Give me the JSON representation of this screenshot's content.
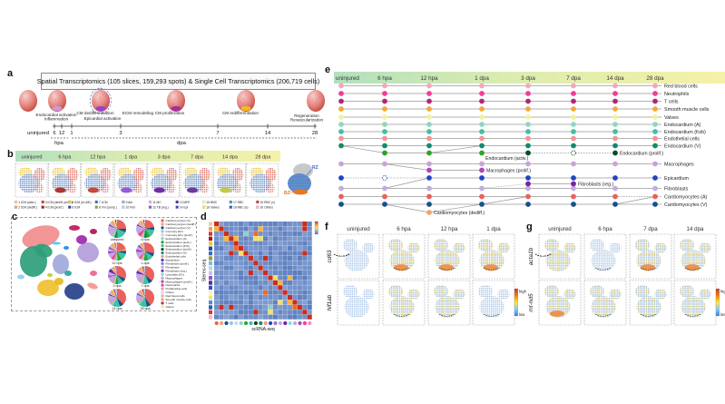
{
  "panel_a": {
    "letter": "a",
    "title": "Spatial Transcriptomics  (105 slices, 159,293 spots)  &  Single Cell Transcriptomics (206,719 cells)",
    "stages": [
      {
        "lines": [
          "Endocardial activation",
          "Inflammation"
        ]
      },
      {
        "lines": [
          "CM dedifferentiation"
        ]
      },
      {
        "lines": [
          "Epicardial activation"
        ]
      },
      {
        "lines": [
          "ECM remodeling"
        ]
      },
      {
        "lines": [
          "CM proliferation"
        ]
      },
      {
        "lines": [
          "CM redifferentiation"
        ]
      },
      {
        "lines": [
          "Regeneration",
          "Revascularization"
        ]
      }
    ],
    "axis": {
      "start_label": "uninjured",
      "tick_labels": [
        "6",
        "12",
        "1",
        "3",
        "7",
        "14",
        "28"
      ],
      "unit_hpa": "hpa",
      "unit_dpa": "dpa"
    }
  },
  "panel_b": {
    "letter": "b",
    "timepoints": [
      "uninjured",
      "6 hpa",
      "12 hpa",
      "1 dpa",
      "3 dpa",
      "7 dpa",
      "14 dpa",
      "28 dpa"
    ],
    "tiles": [
      {
        "label": "uninjured",
        "accent": null
      },
      {
        "label": "6 hpa",
        "accent": "#A82620"
      },
      {
        "label": "12 hpa",
        "accent": "#C23B2E"
      },
      {
        "label": "1 dpa",
        "accent": "#8E4FD0"
      },
      {
        "label": "3 dpa",
        "accent": "#6A1B9A"
      },
      {
        "label": "7 dpa",
        "accent": "#5E2B97"
      },
      {
        "label": "14 dpa",
        "accent": "#C9C832"
      },
      {
        "label": "28 dpa",
        "accent": null
      }
    ],
    "inset": {
      "rz_label": "RZ",
      "bz_label": "BZ",
      "rz_color": "#3A6BC9",
      "bz_color": "#E87722"
    },
    "legend": [
      {
        "label": "1 tCM (activ.)",
        "color": "#F7C9A3"
      },
      {
        "label": "2 tCM (dediff.)",
        "color": "#EFA06B"
      },
      {
        "label": "3 tCM (dediff.-prolif.)",
        "color": "#D63B2F"
      },
      {
        "label": "4 tCM (prolif.)",
        "color": "#9E1C15"
      },
      {
        "label": "5 tCM (re-diff.)",
        "color": "#F2C832"
      },
      {
        "label": "6 tCM",
        "color": "#1F4E9C"
      },
      {
        "label": "7 cCM",
        "color": "#3A6BC9"
      },
      {
        "label": "8 Vm (comp.)",
        "color": "#94A22B"
      },
      {
        "label": "9 Am",
        "color": "#85B6DB"
      },
      {
        "label": "10 tVm",
        "color": "#B8D4EC"
      },
      {
        "label": "11 MC",
        "color": "#CDBCEA"
      },
      {
        "label": "12 TB (reg.)",
        "color": "#8A5BC8"
      },
      {
        "label": "13 MFE",
        "color": "#5A2D8F"
      },
      {
        "label": "14 Epi",
        "color": "#2B51C8"
      },
      {
        "label": "15 BMC",
        "color": "#F6F2B8"
      },
      {
        "label": "16 Valves",
        "color": "#F3E663"
      },
      {
        "label": "17 RBC",
        "color": "#4A8FD9"
      },
      {
        "label": "18 RBC (a)",
        "color": "#2860AE"
      },
      {
        "label": "19 RBC (v)",
        "color": "#D63B2F"
      },
      {
        "label": "20 Others",
        "color": "#F2B8C6"
      }
    ]
  },
  "panel_c": {
    "letter": "c",
    "pie_labels": [
      "uninjured",
      "6 hpa",
      "12 hpa",
      "1 dpa",
      "3 dpa",
      "7 dpa",
      "14 dpa",
      "28 dpa"
    ],
    "pies": [
      [
        [
          "#E9615A",
          25
        ],
        [
          "#174F8F",
          6
        ],
        [
          "#3FC1A5",
          18
        ],
        [
          "#13896E",
          6
        ],
        [
          "#92D6BE",
          5
        ],
        [
          "#F29691",
          3
        ],
        [
          "#9BC4E8",
          3
        ],
        [
          "#C9A2DD",
          8
        ],
        [
          "#BFAEE3",
          7
        ],
        [
          "#2244C4",
          2
        ],
        [
          "#F2A8BC",
          6
        ],
        [
          "#F2A93B",
          4
        ],
        [
          "#F5F0A0",
          3
        ],
        [
          "#B02878",
          2
        ],
        [
          "#D9D9D9",
          2
        ]
      ],
      [
        [
          "#E9615A",
          22
        ],
        [
          "#174F8F",
          5
        ],
        [
          "#3FC1A5",
          14
        ],
        [
          "#27A52B",
          6
        ],
        [
          "#13896E",
          5
        ],
        [
          "#92D6BE",
          4
        ],
        [
          "#F29691",
          3
        ],
        [
          "#F03E98",
          6
        ],
        [
          "#C9A2DD",
          10
        ],
        [
          "#BFAEE3",
          6
        ],
        [
          "#2244C4",
          2
        ],
        [
          "#F2A8BC",
          8
        ],
        [
          "#F2A93B",
          3
        ],
        [
          "#F5F0A0",
          2
        ],
        [
          "#B02878",
          2
        ],
        [
          "#D9D9D9",
          2
        ]
      ],
      [
        [
          "#E9615A",
          20
        ],
        [
          "#F2A469",
          4
        ],
        [
          "#174F8F",
          5
        ],
        [
          "#3FC1A5",
          13
        ],
        [
          "#27A52B",
          7
        ],
        [
          "#92D6BE",
          4
        ],
        [
          "#F29691",
          3
        ],
        [
          "#F03E98",
          5
        ],
        [
          "#C9A2DD",
          10
        ],
        [
          "#AB47BC",
          4
        ],
        [
          "#BFAEE3",
          6
        ],
        [
          "#2244C4",
          2
        ],
        [
          "#F2A8BC",
          7
        ],
        [
          "#F2A93B",
          3
        ],
        [
          "#F5F0A0",
          2
        ],
        [
          "#B02878",
          2
        ],
        [
          "#D9D9D9",
          3
        ]
      ],
      [
        [
          "#E9615A",
          28
        ],
        [
          "#174F8F",
          6
        ],
        [
          "#3FC1A5",
          11
        ],
        [
          "#27A52B",
          7
        ],
        [
          "#92D6BE",
          4
        ],
        [
          "#F29691",
          3
        ],
        [
          "#F03E98",
          3
        ],
        [
          "#C9A2DD",
          12
        ],
        [
          "#AB47BC",
          5
        ],
        [
          "#BFAEE3",
          6
        ],
        [
          "#2244C4",
          2
        ],
        [
          "#F2A8BC",
          5
        ],
        [
          "#F2A93B",
          3
        ],
        [
          "#F5F0A0",
          2
        ],
        [
          "#B02878",
          2
        ],
        [
          "#D9D9D9",
          1
        ]
      ],
      [
        [
          "#E9615A",
          32
        ],
        [
          "#174F8F",
          6
        ],
        [
          "#3FC1A5",
          10
        ],
        [
          "#27A52B",
          5
        ],
        [
          "#92D6BE",
          4
        ],
        [
          "#F29691",
          3
        ],
        [
          "#C9A2DD",
          11
        ],
        [
          "#AB47BC",
          3
        ],
        [
          "#BFAEE3",
          7
        ],
        [
          "#7B1FA2",
          4
        ],
        [
          "#2244C4",
          2
        ],
        [
          "#F2A8BC",
          5
        ],
        [
          "#F2A93B",
          3
        ],
        [
          "#F5F0A0",
          2
        ],
        [
          "#B02878",
          2
        ],
        [
          "#D9D9D9",
          1
        ]
      ],
      [
        [
          "#E9615A",
          36
        ],
        [
          "#174F8F",
          7
        ],
        [
          "#3FC1A5",
          11
        ],
        [
          "#92D6BE",
          4
        ],
        [
          "#F29691",
          3
        ],
        [
          "#C9A2DD",
          9
        ],
        [
          "#BFAEE3",
          8
        ],
        [
          "#7B1FA2",
          3
        ],
        [
          "#2244C4",
          2
        ],
        [
          "#F2A8BC",
          6
        ],
        [
          "#F2A93B",
          3
        ],
        [
          "#F5F0A0",
          2
        ],
        [
          "#B02878",
          2
        ],
        [
          "#9BC4E8",
          3
        ],
        [
          "#D9D9D9",
          1
        ]
      ],
      [
        [
          "#E9615A",
          38
        ],
        [
          "#174F8F",
          7
        ],
        [
          "#3FC1A5",
          13
        ],
        [
          "#92D6BE",
          4
        ],
        [
          "#F29691",
          3
        ],
        [
          "#C9A2DD",
          8
        ],
        [
          "#BFAEE3",
          7
        ],
        [
          "#2244C4",
          2
        ],
        [
          "#F2A8BC",
          6
        ],
        [
          "#F2A93B",
          3
        ],
        [
          "#F5F0A0",
          2
        ],
        [
          "#B02878",
          2
        ],
        [
          "#9BC4E8",
          4
        ],
        [
          "#D9D9D9",
          1
        ]
      ],
      [
        [
          "#E9615A",
          40
        ],
        [
          "#174F8F",
          7
        ],
        [
          "#3FC1A5",
          14
        ],
        [
          "#92D6BE",
          4
        ],
        [
          "#F29691",
          3
        ],
        [
          "#C9A2DD",
          7
        ],
        [
          "#BFAEE3",
          6
        ],
        [
          "#2244C4",
          2
        ],
        [
          "#F2A8BC",
          6
        ],
        [
          "#F2A93B",
          3
        ],
        [
          "#F5F0A0",
          2
        ],
        [
          "#B02878",
          2
        ],
        [
          "#9BC4E8",
          3
        ],
        [
          "#D9D9D9",
          1
        ]
      ]
    ],
    "legend": [
      {
        "label": "Cardiomyocytes (A)",
        "color": "#E9615A"
      },
      {
        "label": "Cardiomyocytes (dediff.)",
        "color": "#F2A469"
      },
      {
        "label": "Cardiomyocytes (V)",
        "color": "#174F8F"
      },
      {
        "label": "Coronary ECs",
        "color": "#9BC4E8"
      },
      {
        "label": "Coronary ECs (prolif.)",
        "color": "#C4DCF0"
      },
      {
        "label": "Endocardium (A)",
        "color": "#92D6BE"
      },
      {
        "label": "Endocardium (activ.)",
        "color": "#27A52B"
      },
      {
        "label": "Endocardium (frzb)",
        "color": "#3FC1A5"
      },
      {
        "label": "Endocardium (prolif.)",
        "color": "#0B4B21"
      },
      {
        "label": "Endocardium (V)",
        "color": "#13896E"
      },
      {
        "label": "Endothelial cells",
        "color": "#F29691"
      },
      {
        "label": "Epicardium",
        "color": "#2244C4"
      },
      {
        "label": "Fibroblasts (prolif.)",
        "color": "#9575CD"
      },
      {
        "label": "Fibroblasts",
        "color": "#BFAEE3"
      },
      {
        "label": "Fibroblasts (reg.)",
        "color": "#7B1FA2"
      },
      {
        "label": "Lymphatic ECs",
        "color": "#80DEEA"
      },
      {
        "label": "Macrophages",
        "color": "#C9A2DD"
      },
      {
        "label": "Macrophages (prolif.)",
        "color": "#AB47BC"
      },
      {
        "label": "Neutrophils",
        "color": "#F03E98"
      },
      {
        "label": "Proliferating cells",
        "color": "#F48FB1"
      },
      {
        "label": "Others",
        "color": "#D9D9D9"
      },
      {
        "label": "Red blood cells",
        "color": "#F2A8BC"
      },
      {
        "label": "Smooth muscle cells",
        "color": "#F2A93B"
      },
      {
        "label": "T cells",
        "color": "#B02878"
      },
      {
        "label": "Valves",
        "color": "#F5F0A0"
      }
    ]
  },
  "panel_d": {
    "letter": "d",
    "xlabel": "scRNA-seq",
    "ylabel": "Stereo-seq",
    "grid_n": 20
  },
  "panel_e": {
    "letter": "e",
    "timepoints": [
      "uninjured",
      "6 hpa",
      "12 hpa",
      "1 dpa",
      "3 dpa",
      "7 dpa",
      "14 dpa",
      "28 dpa"
    ],
    "rows": [
      {
        "label": "Red blood cells",
        "color": "#F2A8BC"
      },
      {
        "label": "Neutrophils",
        "color": "#F03E98"
      },
      {
        "label": "T cells",
        "color": "#B02878"
      },
      {
        "label": "Smooth muscle cells",
        "color": "#F2A93B"
      },
      {
        "label": "Valves",
        "color": "#F5F0A0"
      },
      {
        "label": "Endocardium (A)",
        "color": "#92D6BE"
      },
      {
        "label": "Endocardium (frzb)",
        "color": "#3FC1A5"
      },
      {
        "label": "Endothelial cells",
        "color": "#F29691"
      },
      {
        "label": "Endocardium (V)",
        "color": "#13896E"
      },
      {
        "label": "Macrophages",
        "color": "#C9A2DD"
      },
      {
        "label": "Epicardium",
        "color": "#2244C4"
      },
      {
        "label": "Fibroblasts",
        "color": "#BFAEE3"
      },
      {
        "label": "Cardiomyocytes (A)",
        "color": "#E9615A"
      },
      {
        "label": "Cardiomyocytes (V)",
        "color": "#174F8F"
      }
    ],
    "branches": [
      {
        "label": "Endocardium (activ.)",
        "label2": "Endocardium (prolif.)",
        "color": "#27A52B",
        "dark": "#0B4B21"
      },
      {
        "label": "Macrophages (prolif.)",
        "color": "#AB47BC"
      },
      {
        "label": "Fibroblasts (reg.)",
        "color": "#7B1FA2"
      },
      {
        "label": "Cardiomyocytes  (dediff.)",
        "color": "#F2A469"
      }
    ]
  },
  "panel_f": {
    "letter": "f",
    "genes": [
      "cd63",
      "hif1ab"
    ],
    "timepoints": [
      "uninjured",
      "6 hpa",
      "12 hpa",
      "1 dpa"
    ],
    "colorbar": {
      "high": "high",
      "low": "low"
    },
    "heat": [
      [
        0,
        2,
        2,
        2
      ],
      [
        0,
        1,
        1,
        0
      ]
    ]
  },
  "panel_g": {
    "letter": "g",
    "genes": [
      "acta1b",
      "mt-nd5"
    ],
    "timepoints": [
      "uninjured",
      "6 hpa",
      "7 dpa",
      "14 dpa"
    ],
    "colorbar": {
      "high": "high",
      "low": "low"
    },
    "heat": [
      [
        1,
        0,
        2,
        2
      ],
      [
        2,
        1,
        1,
        1
      ]
    ]
  }
}
